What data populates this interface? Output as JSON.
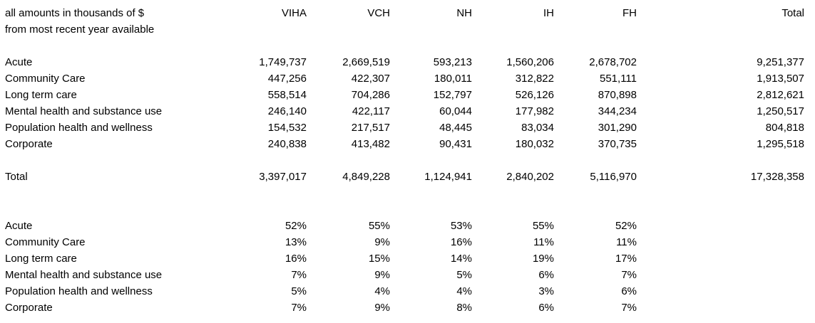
{
  "notes": {
    "line1": "all amounts in thousands of $",
    "line2": "from most recent year available"
  },
  "columns": [
    "VIHA",
    "VCH",
    "NH",
    "IH",
    "FH",
    "Total"
  ],
  "amounts": {
    "rows": [
      {
        "label": "Acute",
        "values": [
          "1,749,737",
          "2,669,519",
          "593,213",
          "1,560,206",
          "2,678,702",
          "9,251,377"
        ]
      },
      {
        "label": "Community Care",
        "values": [
          "447,256",
          "422,307",
          "180,011",
          "312,822",
          "551,111",
          "1,913,507"
        ]
      },
      {
        "label": "Long term care",
        "values": [
          "558,514",
          "704,286",
          "152,797",
          "526,126",
          "870,898",
          "2,812,621"
        ]
      },
      {
        "label": "Mental health and substance use",
        "values": [
          "246,140",
          "422,117",
          "60,044",
          "177,982",
          "344,234",
          "1,250,517"
        ]
      },
      {
        "label": "Population health and wellness",
        "values": [
          "154,532",
          "217,517",
          "48,445",
          "83,034",
          "301,290",
          "804,818"
        ]
      },
      {
        "label": "Corporate",
        "values": [
          "240,838",
          "413,482",
          "90,431",
          "180,032",
          "370,735",
          "1,295,518"
        ]
      }
    ],
    "total": {
      "label": "Total",
      "values": [
        "3,397,017",
        "4,849,228",
        "1,124,941",
        "2,840,202",
        "5,116,970",
        "17,328,358"
      ]
    }
  },
  "percent": {
    "rows": [
      {
        "label": "Acute",
        "values": [
          "52%",
          "55%",
          "53%",
          "55%",
          "52%"
        ]
      },
      {
        "label": "Community Care",
        "values": [
          "13%",
          "9%",
          "16%",
          "11%",
          "11%"
        ]
      },
      {
        "label": "Long term care",
        "values": [
          "16%",
          "15%",
          "14%",
          "19%",
          "17%"
        ]
      },
      {
        "label": "Mental health and substance use",
        "values": [
          "7%",
          "9%",
          "5%",
          "6%",
          "7%"
        ]
      },
      {
        "label": "Population health and wellness",
        "values": [
          "5%",
          "4%",
          "4%",
          "3%",
          "6%"
        ]
      },
      {
        "label": "Corporate",
        "values": [
          "7%",
          "9%",
          "8%",
          "6%",
          "7%"
        ]
      }
    ]
  },
  "chart_data": [
    {
      "type": "table",
      "units": "thousands of $",
      "note": "from most recent year available",
      "columns": [
        "VIHA",
        "VCH",
        "NH",
        "IH",
        "FH",
        "Total"
      ],
      "row_labels": [
        "Acute",
        "Community Care",
        "Long term care",
        "Mental health and substance use",
        "Population health and wellness",
        "Corporate",
        "Total"
      ],
      "values": [
        [
          1749737,
          2669519,
          593213,
          1560206,
          2678702,
          9251377
        ],
        [
          447256,
          422307,
          180011,
          312822,
          551111,
          1913507
        ],
        [
          558514,
          704286,
          152797,
          526126,
          870898,
          2812621
        ],
        [
          246140,
          422117,
          60044,
          177982,
          344234,
          1250517
        ],
        [
          154532,
          217517,
          48445,
          83034,
          301290,
          804818
        ],
        [
          240838,
          413482,
          90431,
          180032,
          370735,
          1295518
        ],
        [
          3397017,
          4849228,
          1124941,
          2840202,
          5116970,
          17328358
        ]
      ]
    },
    {
      "type": "table",
      "units": "percent of column total",
      "columns": [
        "VIHA",
        "VCH",
        "NH",
        "IH",
        "FH"
      ],
      "row_labels": [
        "Acute",
        "Community Care",
        "Long term care",
        "Mental health and substance use",
        "Population health and wellness",
        "Corporate"
      ],
      "values": [
        [
          52,
          55,
          53,
          55,
          52
        ],
        [
          13,
          9,
          16,
          11,
          11
        ],
        [
          16,
          15,
          14,
          19,
          17
        ],
        [
          7,
          9,
          5,
          6,
          7
        ],
        [
          5,
          4,
          4,
          3,
          6
        ],
        [
          7,
          9,
          8,
          6,
          7
        ]
      ]
    }
  ]
}
